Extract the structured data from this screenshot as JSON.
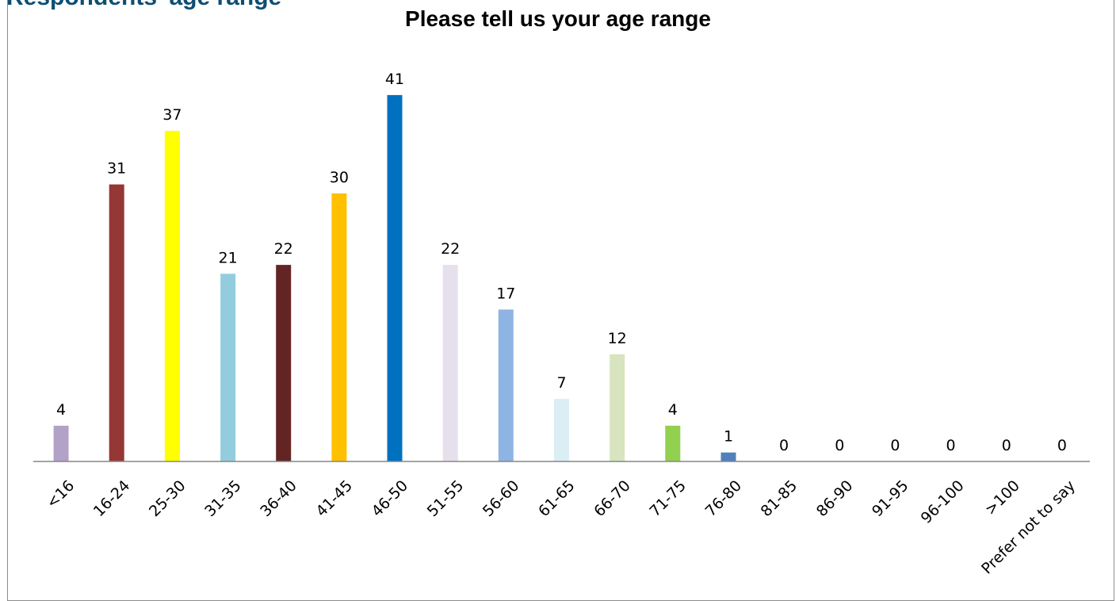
{
  "header": {
    "background_heading": "Respondents' age range"
  },
  "chart_data": {
    "type": "bar",
    "title": "Please tell us your age range",
    "xlabel": "",
    "ylabel": "",
    "ylim": [
      0,
      45
    ],
    "grid": false,
    "legend": "none",
    "categories": [
      "<16",
      "16-24",
      "25-30",
      "31-35",
      "36-40",
      "41-45",
      "46-50",
      "51-55",
      "56-60",
      "61-65",
      "66-70",
      "71-75",
      "76-80",
      "81-85",
      "86-90",
      "91-95",
      "96-100",
      ">100",
      "Prefer not to say"
    ],
    "values": [
      4,
      31,
      37,
      21,
      22,
      30,
      41,
      22,
      17,
      7,
      12,
      4,
      1,
      0,
      0,
      0,
      0,
      0,
      0
    ],
    "colors": [
      "#b3a2c7",
      "#953735",
      "#ffff00",
      "#93cddd",
      "#632523",
      "#ffc000",
      "#0070c0",
      "#e6e0ec",
      "#8eb4e3",
      "#dbeef4",
      "#d7e4bd",
      "#92d050",
      "#4f81bd",
      "#4f81bd",
      "#4f81bd",
      "#4f81bd",
      "#4f81bd",
      "#4f81bd",
      "#4f81bd"
    ]
  }
}
